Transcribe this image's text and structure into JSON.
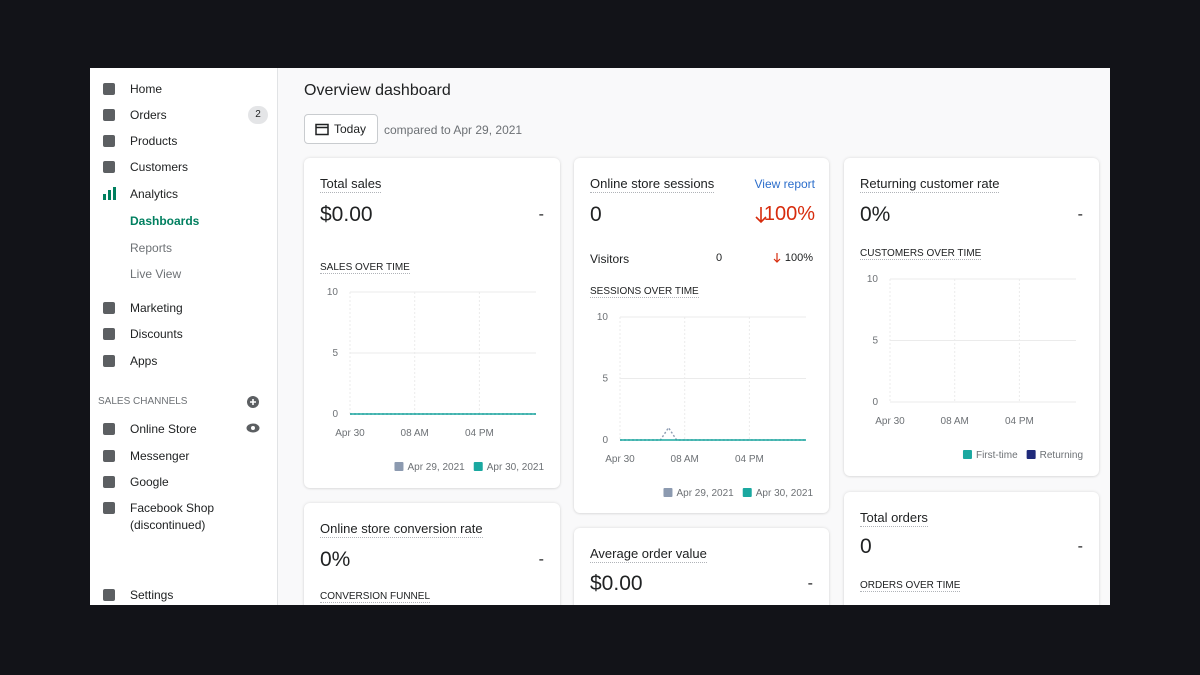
{
  "sidebar": {
    "main": [
      "Home",
      "Orders",
      "Products",
      "Customers",
      "Analytics"
    ],
    "orders_badge": 2,
    "analytics_sub": [
      "Dashboards",
      "Reports",
      "Live View"
    ],
    "more": [
      "Marketing",
      "Discounts",
      "Apps"
    ],
    "sales_channels_title": "SALES CHANNELS",
    "channels": [
      "Online Store",
      "Messenger",
      "Google",
      "Facebook Shop"
    ],
    "channel_note": "(discontinued)",
    "settings": "Settings"
  },
  "header": {
    "title": "Overview dashboard",
    "date_button": "Today",
    "comparison": "compared to Apr 29, 2021"
  },
  "cards": [
    {
      "title": "Total sales",
      "value": "$0.00",
      "change": "-",
      "chart": {
        "title": "SALES OVER TIME",
        "x": [
          0,
          1,
          2,
          3,
          4,
          5,
          6,
          7,
          8,
          9,
          10,
          11,
          12,
          13,
          14,
          15,
          16,
          17,
          18,
          19,
          20,
          21,
          22,
          23
        ],
        "xlim": [
          0,
          23
        ],
        "xticks": [
          {
            "value": 0,
            "label": "Apr 30"
          },
          {
            "value": 8,
            "label": "08 AM"
          },
          {
            "value": 16,
            "label": "04 PM"
          }
        ],
        "ylim": [
          0,
          10
        ],
        "yticks": [
          0,
          5,
          10
        ],
        "series": [
          {
            "name": "Apr 29, 2021",
            "color": "#8c9ab0",
            "dashed": true,
            "values": [
              0,
              0,
              0,
              0,
              0,
              0,
              0,
              0,
              0,
              0,
              0,
              0,
              0,
              0,
              0,
              0,
              0,
              0,
              0,
              0,
              0,
              0,
              0,
              0
            ]
          },
          {
            "name": "Apr 30, 2021",
            "color": "#1aa8a0",
            "dashed": false,
            "values": [
              0,
              0,
              0,
              0,
              0,
              0,
              0,
              0,
              0,
              0,
              0,
              0,
              0,
              0,
              0,
              0,
              0,
              0,
              0,
              0,
              0,
              0,
              0,
              0
            ]
          }
        ]
      }
    },
    {
      "title": "Online store sessions",
      "link": "View report",
      "value": "0",
      "change": "100%",
      "visitors": {
        "label": "Visitors",
        "value": "0",
        "change": "100%"
      },
      "chart": {
        "title": "SESSIONS OVER TIME",
        "x": [
          0,
          1,
          2,
          3,
          4,
          5,
          6,
          7,
          8,
          9,
          10,
          11,
          12,
          13,
          14,
          15,
          16,
          17,
          18,
          19,
          20,
          21,
          22,
          23
        ],
        "xlim": [
          0,
          23
        ],
        "xticks": [
          {
            "value": 0,
            "label": "Apr 30"
          },
          {
            "value": 8,
            "label": "08 AM"
          },
          {
            "value": 16,
            "label": "04 PM"
          }
        ],
        "ylim": [
          0,
          10
        ],
        "yticks": [
          0,
          5,
          10
        ],
        "series": [
          {
            "name": "Apr 29, 2021",
            "color": "#8c9ab0",
            "dashed": true,
            "values": [
              0,
              0,
              0,
              0,
              0,
              0,
              1,
              0,
              0,
              0,
              0,
              0,
              0,
              0,
              0,
              0,
              0,
              0,
              0,
              0,
              0,
              0,
              0,
              0
            ]
          },
          {
            "name": "Apr 30, 2021",
            "color": "#1aa8a0",
            "dashed": false,
            "values": [
              0,
              0,
              0,
              0,
              0,
              0,
              0,
              0,
              0,
              0,
              0,
              0,
              0,
              0,
              0,
              0,
              0,
              0,
              0,
              0,
              0,
              0,
              0,
              0
            ]
          }
        ]
      }
    },
    {
      "title": "Returning customer rate",
      "value": "0%",
      "change": "-",
      "chart": {
        "title": "CUSTOMERS OVER TIME",
        "xlim": [
          0,
          23
        ],
        "xticks": [
          {
            "value": 0,
            "label": "Apr 30"
          },
          {
            "value": 8,
            "label": "08 AM"
          },
          {
            "value": 16,
            "label": "04 PM"
          }
        ],
        "ylim": [
          0,
          10
        ],
        "yticks": [
          0,
          5,
          10
        ],
        "series": [
          {
            "name": "First-time",
            "color": "#1aa8a0"
          },
          {
            "name": "Returning",
            "color": "#1f2a7a"
          }
        ]
      }
    },
    {
      "title": "Online store conversion rate",
      "value": "0%",
      "change": "-",
      "section": "CONVERSION FUNNEL"
    },
    {
      "title": "Average order value",
      "value": "$0.00",
      "change": "-"
    },
    {
      "title": "Total orders",
      "value": "0",
      "change": "-",
      "section": "ORDERS OVER TIME"
    }
  ]
}
